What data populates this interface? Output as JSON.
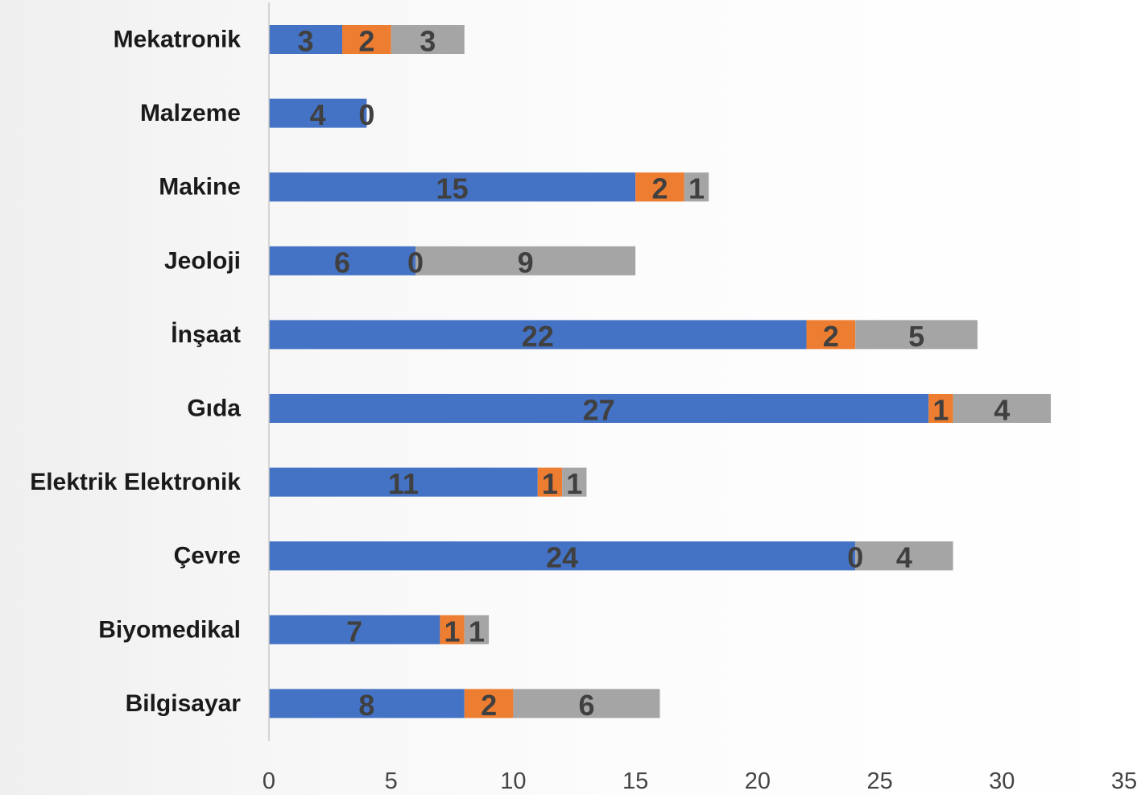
{
  "chart_data": {
    "type": "bar",
    "orientation": "horizontal",
    "stacked": true,
    "title": "",
    "xlabel": "",
    "ylabel": "",
    "xlim": [
      0,
      35
    ],
    "xticks": [
      "0",
      "5",
      "10",
      "15",
      "20",
      "25",
      "30",
      "35"
    ],
    "grid": false,
    "legend": "none",
    "categories": [
      "Mekatronik",
      "Malzeme",
      "Makine",
      "Jeoloji",
      "İnşaat",
      "Gıda",
      "Elektrik Elektronik",
      "Çevre",
      "Biyomedikal",
      "Bilgisayar"
    ],
    "series": [
      {
        "color": "#4472c4",
        "values": [
          3,
          4,
          15,
          6,
          22,
          27,
          11,
          24,
          7,
          8
        ]
      },
      {
        "color": "#ed7d31",
        "values": [
          2,
          0,
          2,
          0,
          2,
          1,
          1,
          0,
          1,
          2
        ]
      },
      {
        "color": "#a5a5a5",
        "values": [
          3,
          null,
          1,
          9,
          5,
          4,
          1,
          4,
          1,
          6
        ]
      }
    ]
  }
}
